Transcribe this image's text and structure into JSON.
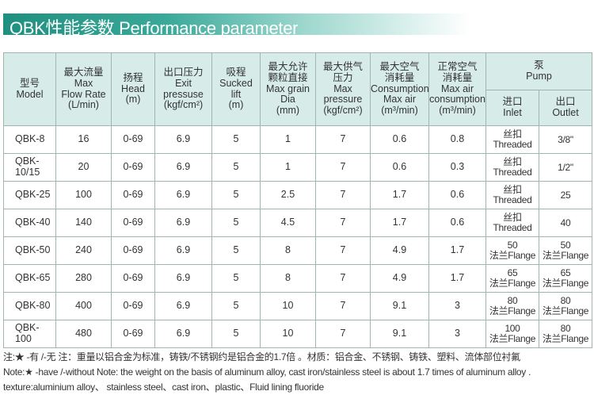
{
  "title": "QBK性能参数 Performance parameter",
  "header": {
    "model": [
      "型号",
      "Model"
    ],
    "flow": [
      "最大流量",
      "Max",
      "Flow Rate",
      "(L/min)"
    ],
    "head": [
      "扬程",
      "Head",
      "(m)"
    ],
    "exit": [
      "出口压力",
      "Exit",
      "pressuse",
      "(kgf/cm²)"
    ],
    "sucked": [
      "吸程",
      "Sucked",
      "lift",
      "(m)"
    ],
    "grain": [
      "最大允许",
      "颗粒直接",
      "Max grain",
      "Dia",
      "(mm)"
    ],
    "maxp": [
      "最大供气",
      "压力",
      "Max",
      "pressure",
      "(kgf/cm²)"
    ],
    "maxair": [
      "最大空气",
      "消耗量",
      "Consumption",
      "Max air",
      "(m³/min)"
    ],
    "normal": [
      "正常空气",
      "消耗量",
      "Max air",
      "consumption",
      "(m³/min)"
    ],
    "pump": [
      "泵",
      "Pump"
    ],
    "inlet": [
      "进口",
      "Inlet"
    ],
    "outlet": [
      "出口",
      "Outlet"
    ]
  },
  "rows": [
    {
      "model": "QBK-8",
      "flow": "16",
      "head": "0-69",
      "exit": "6.9",
      "sucked": "5",
      "grain": "1",
      "maxp": "7",
      "maxair": "0.6",
      "normal": "0.8",
      "inlet": [
        "丝扣",
        "Threaded"
      ],
      "outlet": [
        "3/8\"",
        ""
      ]
    },
    {
      "model": "QBK-10/15",
      "flow": "20",
      "head": "0-69",
      "exit": "6.9",
      "sucked": "5",
      "grain": "1",
      "maxp": "7",
      "maxair": "0.6",
      "normal": "0.3",
      "inlet": [
        "丝扣",
        "Threaded"
      ],
      "outlet": [
        "1/2\"",
        ""
      ]
    },
    {
      "model": "QBK-25",
      "flow": "100",
      "head": "0-69",
      "exit": "6.9",
      "sucked": "5",
      "grain": "2.5",
      "maxp": "7",
      "maxair": "1.7",
      "normal": "0.6",
      "inlet": [
        "丝扣",
        "Threaded"
      ],
      "outlet": [
        "25",
        ""
      ]
    },
    {
      "model": "QBK-40",
      "flow": "140",
      "head": "0-69",
      "exit": "6.9",
      "sucked": "5",
      "grain": "4.5",
      "maxp": "7",
      "maxair": "1.7",
      "normal": "0.6",
      "inlet": [
        "丝扣",
        "Threaded"
      ],
      "outlet": [
        "40",
        ""
      ]
    },
    {
      "model": "QBK-50",
      "flow": "240",
      "head": "0-69",
      "exit": "6.9",
      "sucked": "5",
      "grain": "8",
      "maxp": "7",
      "maxair": "4.9",
      "normal": "1.7",
      "inlet": [
        "50",
        "法兰Flange"
      ],
      "outlet": [
        "50",
        "法兰Flange"
      ]
    },
    {
      "model": "QBK-65",
      "flow": "280",
      "head": "0-69",
      "exit": "6.9",
      "sucked": "5",
      "grain": "8",
      "maxp": "7",
      "maxair": "4.9",
      "normal": "1.7",
      "inlet": [
        "65",
        "法兰Flange"
      ],
      "outlet": [
        "65",
        "法兰Flange"
      ]
    },
    {
      "model": "QBK-80",
      "flow": "400",
      "head": "0-69",
      "exit": "6.9",
      "sucked": "5",
      "grain": "10",
      "maxp": "7",
      "maxair": "9.1",
      "normal": "3",
      "inlet": [
        "80",
        "法兰Flange"
      ],
      "outlet": [
        "80",
        "法兰Flange"
      ]
    },
    {
      "model": "QBK-100",
      "flow": "480",
      "head": "0-69",
      "exit": "6.9",
      "sucked": "5",
      "grain": "10",
      "maxp": "7",
      "maxair": "9.1",
      "normal": "3",
      "inlet": [
        "100",
        "法兰Flange"
      ],
      "outlet": [
        "80",
        "法兰Flange"
      ]
    }
  ],
  "notes": [
    "注:★ -有 /-无    注：重量以铝合金为标准，铸铁/不锈钢约是铝合金的1.7倍 。材质：铝合金、不锈钢、铸铁、塑料、流体部位衬氟",
    "Note:★ -have /-without  Note: the weight on the basis of aluminum alloy, cast iron/stainless steel is about 1.7 times of aluminum alloy .",
    "texture:aluminium alloy、 stainless steel、cast iron、plastic、Fluid lining fluoride"
  ]
}
